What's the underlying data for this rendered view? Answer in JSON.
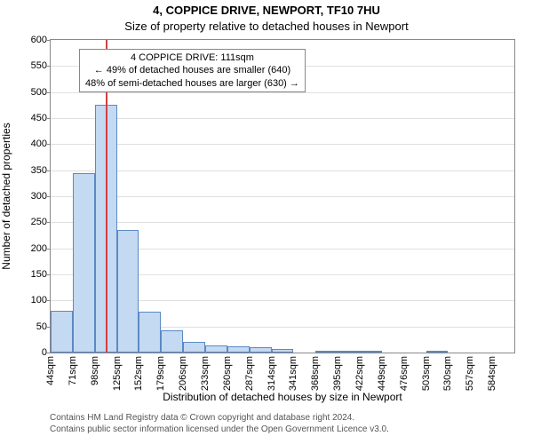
{
  "title_main": "4, COPPICE DRIVE, NEWPORT, TF10 7HU",
  "title_sub": "Size of property relative to detached houses in Newport",
  "ylabel": "Number of detached properties",
  "xlabel": "Distribution of detached houses by size in Newport",
  "footer_line1": "Contains HM Land Registry data © Crown copyright and database right 2024.",
  "footer_line2": "Contains public sector information licensed under the Open Government Licence v3.0.",
  "chart": {
    "type": "histogram",
    "background_color": "#ffffff",
    "border_color": "#888888",
    "grid_color": "#e0e0e0",
    "bar_fill": "#c4d9f2",
    "bar_border": "#5b89c4",
    "marker_line_color": "#d04040",
    "annot_bg": "#ffffff",
    "annot_border": "#888888",
    "ylim": [
      0,
      600
    ],
    "ytick_step": 50,
    "x_start": 44,
    "x_step": 27,
    "x_count": 21,
    "x_unit": "sqm",
    "bars": [
      80,
      345,
      475,
      235,
      78,
      42,
      20,
      14,
      12,
      10,
      6,
      0,
      4,
      2,
      2,
      0,
      0,
      2,
      0,
      0,
      0
    ],
    "marker_value": 111,
    "annot_lines": [
      "4 COPPICE DRIVE: 111sqm",
      "← 49% of detached houses are smaller (640)",
      "48% of semi-detached houses are larger (630) →"
    ]
  }
}
